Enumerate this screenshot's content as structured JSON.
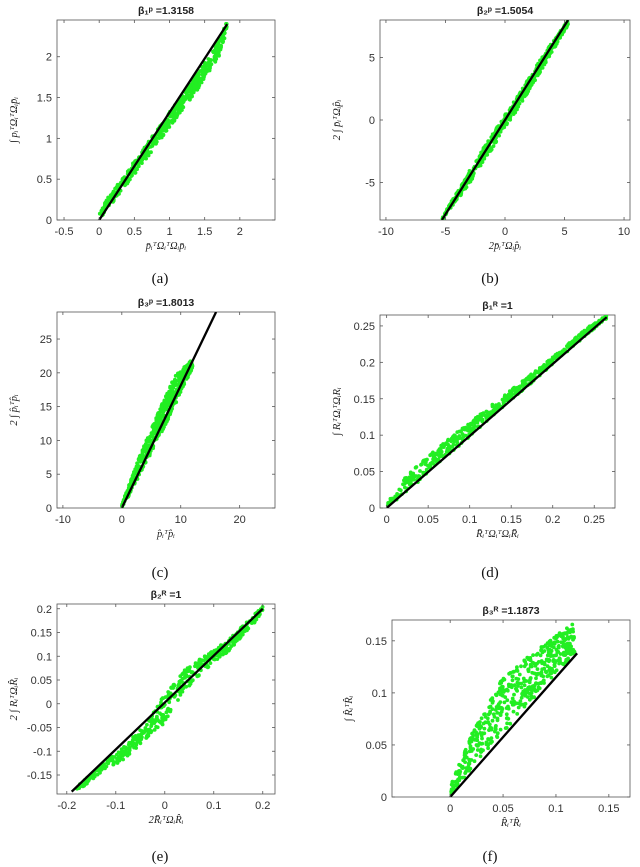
{
  "chart_data": [
    {
      "panel": "a",
      "type": "scatter",
      "caption": "(a)",
      "title": "β₁ᵖ =1.3158",
      "xlabel": "p̄ᵢᵀΩᵢᵀΩᵢp̄ᵢ",
      "ylabel": "∫ pᵢᵀΩᵢᵀΩᵢp̄ᵢ",
      "xlim": [
        -0.6,
        2.5
      ],
      "ylim": [
        0,
        2.45
      ],
      "xticks": [
        -0.5,
        0,
        0.5,
        1,
        1.5,
        2
      ],
      "yticks": [
        0,
        0.5,
        1,
        1.5,
        2
      ],
      "xticklabels": [
        "-0.5",
        "0",
        "0.5",
        "1",
        "1.5",
        "2"
      ],
      "yticklabels": [
        "0",
        "0.5",
        "1",
        "1.5",
        "2"
      ],
      "grid": false,
      "scatter_color": "#22ee22",
      "line_color": "#000000",
      "reference_line": {
        "x": [
          0,
          1.82
        ],
        "y": [
          0,
          2.4
        ]
      },
      "scatter_band": {
        "x": [
          0,
          0.2,
          0.5,
          0.8,
          1.1,
          1.4,
          1.7,
          1.82
        ],
        "upper": [
          0.13,
          0.36,
          0.72,
          1.08,
          1.44,
          1.8,
          2.2,
          2.44
        ],
        "lower": [
          0.0,
          0.22,
          0.56,
          0.9,
          1.25,
          1.6,
          2.0,
          2.32
        ]
      }
    },
    {
      "panel": "b",
      "type": "scatter",
      "caption": "(b)",
      "title": "β₂ᵖ =1.5054",
      "xlabel": "2p̄ᵢᵀΩᵢp̂ᵢ",
      "ylabel": "2 ∫ p̄ᵢᵀΩᵢp̂ᵢ",
      "xlim": [
        -10.5,
        10.5
      ],
      "ylim": [
        -8,
        8
      ],
      "xticks": [
        -10,
        -5,
        0,
        5,
        10
      ],
      "yticks": [
        -5,
        0,
        5
      ],
      "xticklabels": [
        "-10",
        "-5",
        "0",
        "5",
        "10"
      ],
      "yticklabels": [
        "-5",
        "0",
        "5"
      ],
      "grid": false,
      "scatter_color": "#22ee22",
      "line_color": "#000000",
      "reference_line": {
        "x": [
          -5.3,
          5.3
        ],
        "y": [
          -8,
          8
        ]
      },
      "scatter_band": {
        "x": [
          -5.3,
          -3,
          -1,
          0,
          1,
          3,
          5.3
        ],
        "upper": [
          -7.8,
          -4.1,
          -1.0,
          0.4,
          1.8,
          4.9,
          8.0
        ],
        "lower": [
          -8.0,
          -5.1,
          -2.2,
          -0.6,
          0.8,
          3.9,
          7.6
        ]
      }
    },
    {
      "panel": "c",
      "type": "scatter",
      "caption": "(c)",
      "title": "β₃ᵖ =1.8013",
      "xlabel": "p̂ᵢᵀp̂ᵢ",
      "ylabel": "2 ∫ p̂ᵢᵀp̂ᵢ",
      "xlim": [
        -11,
        26
      ],
      "ylim": [
        0,
        29
      ],
      "xticks": [
        -10,
        0,
        10,
        20
      ],
      "yticks": [
        0,
        5,
        10,
        15,
        20,
        25
      ],
      "xticklabels": [
        "-10",
        "0",
        "10",
        "20"
      ],
      "yticklabels": [
        "0",
        "5",
        "10",
        "15",
        "20",
        "25"
      ],
      "grid": false,
      "scatter_color": "#22ee22",
      "line_color": "#000000",
      "reference_line": {
        "x": [
          0,
          16
        ],
        "y": [
          0,
          29
        ]
      },
      "scatter_band": {
        "x": [
          0,
          3,
          6,
          9,
          12
        ],
        "upper": [
          0.6,
          7.6,
          13.8,
          19.5,
          22.0
        ],
        "lower": [
          0,
          4.6,
          9.8,
          15.2,
          20.8
        ]
      }
    },
    {
      "panel": "d",
      "type": "scatter",
      "caption": "(d)",
      "title": "β₁ᴿ =1",
      "xlabel": "R̄ᵢᵀΩᵢᵀΩᵢR̄ᵢ",
      "ylabel": "∫ RᵢᵀΩᵢᵀΩᵢRᵢ",
      "xlim": [
        -0.008,
        0.275
      ],
      "ylim": [
        0,
        0.265
      ],
      "xticks": [
        0,
        0.05,
        0.1,
        0.15,
        0.2,
        0.25
      ],
      "yticks": [
        0,
        0.05,
        0.1,
        0.15,
        0.2,
        0.25
      ],
      "xticklabels": [
        "0",
        "0.05",
        "0.1",
        "0.15",
        "0.2",
        "0.25"
      ],
      "yticklabels": [
        "0",
        "0.05",
        "0.1",
        "0.15",
        "0.2",
        "0.25"
      ],
      "grid": false,
      "scatter_color": "#22ee22",
      "line_color": "#000000",
      "reference_line": {
        "x": [
          0,
          0.265
        ],
        "y": [
          0,
          0.262
        ]
      },
      "scatter_band": {
        "x": [
          0,
          0.02,
          0.05,
          0.1,
          0.15,
          0.2,
          0.24,
          0.265
        ],
        "upper": [
          0.006,
          0.04,
          0.072,
          0.118,
          0.162,
          0.207,
          0.246,
          0.265
        ],
        "lower": [
          0,
          0.018,
          0.048,
          0.098,
          0.148,
          0.197,
          0.237,
          0.26
        ]
      }
    },
    {
      "panel": "e",
      "type": "scatter",
      "caption": "(e)",
      "title": "β₂ᴿ =1",
      "xlabel": "2R̄ᵢᵀΩᵢR̂ᵢ",
      "ylabel": "2 ∫ RᵢᵀΩᵢR̂ᵢ",
      "xlim": [
        -0.22,
        0.225
      ],
      "ylim": [
        -0.19,
        0.21
      ],
      "xticks": [
        -0.2,
        -0.1,
        0,
        0.1,
        0.2
      ],
      "yticks": [
        -0.15,
        -0.1,
        -0.05,
        0,
        0.05,
        0.1,
        0.15,
        0.2
      ],
      "xticklabels": [
        "-0.2",
        "-0.1",
        "0",
        "0.1",
        "0.2"
      ],
      "yticklabels": [
        "-0.15",
        "-0.1",
        "-0.05",
        "0",
        "0.05",
        "0.1",
        "0.15",
        "0.2"
      ],
      "grid": false,
      "scatter_color": "#22ee22",
      "line_color": "#000000",
      "reference_line": {
        "x": [
          -0.19,
          0.2
        ],
        "y": [
          -0.185,
          0.2
        ]
      },
      "scatter_band": {
        "x": [
          -0.18,
          -0.13,
          -0.08,
          -0.04,
          0,
          0.04,
          0.08,
          0.13,
          0.2
        ],
        "upper": [
          -0.175,
          -0.13,
          -0.085,
          -0.045,
          0.02,
          0.07,
          0.1,
          0.135,
          0.205
        ],
        "lower": [
          -0.185,
          -0.145,
          -0.115,
          -0.075,
          -0.04,
          0.025,
          0.07,
          0.11,
          0.19
        ]
      }
    },
    {
      "panel": "f",
      "type": "scatter",
      "caption": "(f)",
      "title": "β₃ᴿ =1.1873",
      "xlabel": "R̂ᵢᵀR̂ᵢ",
      "ylabel": "∫ R̂ᵢᵀR̂ᵢ",
      "xlim": [
        -0.055,
        0.17
      ],
      "ylim": [
        0,
        0.17
      ],
      "xticks": [
        0,
        0.05,
        0.1,
        0.15
      ],
      "yticks": [
        0,
        0.05,
        0.1,
        0.15
      ],
      "xticklabels": [
        "0",
        "0.05",
        "0.1",
        "0.15"
      ],
      "yticklabels": [
        "0",
        "0.05",
        "0.1",
        "0.15"
      ],
      "grid": false,
      "scatter_color": "#22ee22",
      "line_color": "#000000",
      "reference_line": {
        "x": [
          0,
          0.12
        ],
        "y": [
          0,
          0.138
        ]
      },
      "scatter_band": {
        "x": [
          0,
          0.02,
          0.05,
          0.08,
          0.1,
          0.118
        ],
        "upper": [
          0.01,
          0.06,
          0.115,
          0.14,
          0.155,
          0.168
        ],
        "lower": [
          0,
          0.028,
          0.062,
          0.096,
          0.118,
          0.138
        ]
      }
    }
  ]
}
